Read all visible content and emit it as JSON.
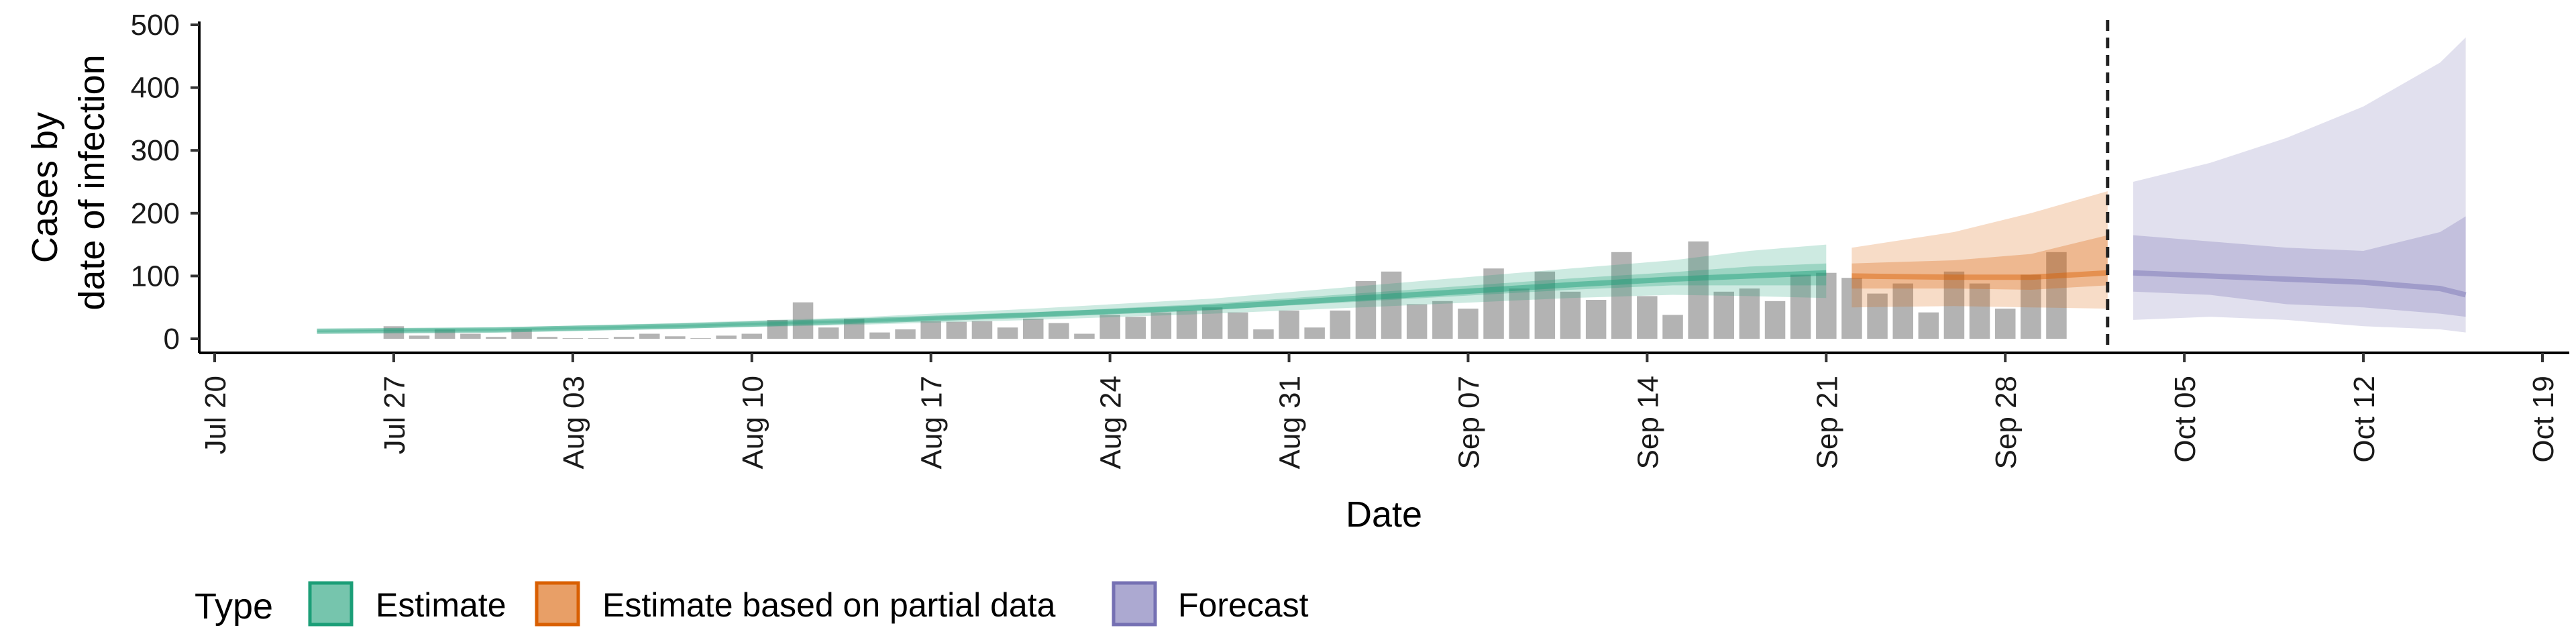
{
  "chart_data": {
    "type": "bar",
    "xlabel": "Date",
    "ylabel": [
      "Cases by",
      "date of infection"
    ],
    "ylim": [
      0,
      500
    ],
    "yticks": [
      0,
      100,
      200,
      300,
      400,
      500
    ],
    "xlim": [
      "2020-07-20",
      "2020-10-19"
    ],
    "xticks": [
      "2020-07-20",
      "2020-07-27",
      "2020-08-03",
      "2020-08-10",
      "2020-08-17",
      "2020-08-24",
      "2020-08-31",
      "2020-09-07",
      "2020-09-14",
      "2020-09-21",
      "2020-09-28",
      "2020-10-05",
      "2020-10-12",
      "2020-10-19"
    ],
    "xtick_labels": [
      "Jul 20",
      "Jul 27",
      "Aug 03",
      "Aug 10",
      "Aug 17",
      "Aug 24",
      "Aug 31",
      "Sep 07",
      "Sep 14",
      "Sep 21",
      "Sep 28",
      "Oct 05",
      "Oct 12",
      "Oct 19"
    ],
    "forecast_date": "2020-10-02",
    "bar_color": "#b3b3b3",
    "bars": {
      "start": "2020-07-27",
      "values": [
        20,
        5,
        15,
        8,
        3,
        15,
        3,
        1,
        1,
        3,
        8,
        4,
        1,
        5,
        8,
        30,
        58,
        18,
        32,
        10,
        15,
        28,
        27,
        28,
        18,
        32,
        25,
        8,
        38,
        35,
        42,
        45,
        50,
        42,
        15,
        45,
        18,
        45,
        92,
        107,
        55,
        60,
        48,
        112,
        80,
        107,
        75,
        62,
        138,
        68,
        38,
        155,
        75,
        80,
        60,
        102,
        105,
        97,
        72,
        88,
        42,
        107,
        88,
        48,
        102,
        138
      ]
    },
    "series": [
      {
        "name": "Estimate",
        "color": "#1b9e77",
        "x": [
          "2020-07-24",
          "2020-07-31",
          "2020-08-07",
          "2020-08-14",
          "2020-08-21",
          "2020-08-28",
          "2020-09-04",
          "2020-09-11",
          "2020-09-15",
          "2020-09-18",
          "2020-09-21"
        ],
        "median": [
          12,
          14,
          20,
          28,
          38,
          50,
          68,
          86,
          95,
          100,
          105
        ],
        "lower50": [
          11,
          13,
          18,
          26,
          35,
          46,
          62,
          78,
          85,
          85,
          85
        ],
        "upper50": [
          13,
          16,
          22,
          30,
          42,
          56,
          76,
          96,
          106,
          115,
          120
        ],
        "lower90": [
          9,
          11,
          16,
          22,
          30,
          40,
          52,
          65,
          70,
          68,
          65
        ],
        "upper90": [
          15,
          18,
          25,
          34,
          48,
          64,
          88,
          112,
          125,
          140,
          150
        ]
      },
      {
        "name": "Estimate based on partial data",
        "color": "#d95f02",
        "x": [
          "2020-09-22",
          "2020-09-26",
          "2020-09-29",
          "2020-10-02"
        ],
        "median": [
          100,
          98,
          98,
          105
        ],
        "lower50": [
          80,
          80,
          78,
          85
        ],
        "upper50": [
          120,
          125,
          135,
          165
        ],
        "lower90": [
          50,
          52,
          50,
          48
        ],
        "upper90": [
          145,
          170,
          200,
          235
        ]
      },
      {
        "name": "Forecast",
        "color": "#7570b3",
        "x": [
          "2020-10-03",
          "2020-10-06",
          "2020-10-09",
          "2020-10-12",
          "2020-10-15",
          "2020-10-16"
        ],
        "median": [
          105,
          100,
          95,
          90,
          80,
          70
        ],
        "lower50": [
          75,
          70,
          55,
          50,
          40,
          35
        ],
        "upper50": [
          165,
          155,
          145,
          140,
          170,
          195
        ],
        "lower90": [
          30,
          35,
          30,
          20,
          15,
          10
        ],
        "upper90": [
          250,
          280,
          320,
          370,
          440,
          480
        ]
      }
    ],
    "legend": {
      "title": "Type",
      "position": "bottom",
      "entries": [
        "Estimate",
        "Estimate based on partial data",
        "Forecast"
      ]
    }
  }
}
